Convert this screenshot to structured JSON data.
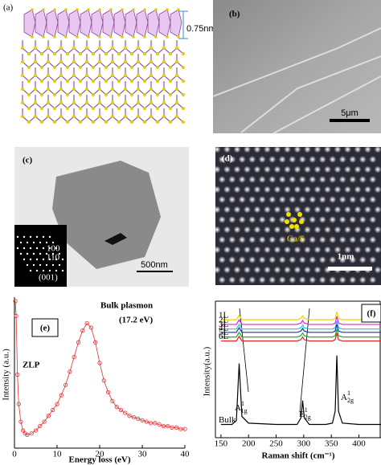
{
  "panels": {
    "a": {
      "label": "(a)",
      "thickness": "0.75nm"
    },
    "b": {
      "label": "(b)",
      "scale": "5μm"
    },
    "c": {
      "label": "(c)",
      "scale": "500nm",
      "inset": [
        "100",
        "110",
        "(001)"
      ]
    },
    "d": {
      "label": "(d)",
      "scale": "1nm",
      "atoms": "Ga/S"
    }
  },
  "chart_data": [
    {
      "type": "scatter",
      "label": "(e)",
      "xlabel": "Energy loss (eV)",
      "ylabel": "Intensity (a.u.)",
      "color": "#e03030",
      "annotations": [
        "ZLP",
        "Bulk plasmon",
        "(17.2 eV)"
      ],
      "x": [
        0.2,
        0.4,
        0.7,
        1,
        1.5,
        2,
        2.5,
        3,
        4,
        5,
        6,
        7,
        8,
        9,
        10,
        11,
        12,
        13,
        14,
        15,
        16,
        17,
        18,
        19,
        20,
        21,
        22,
        23,
        24,
        25,
        26,
        27,
        28,
        29,
        30,
        31,
        32,
        33,
        34,
        35,
        36,
        37,
        38,
        39,
        40
      ],
      "values": [
        1.0,
        0.9,
        0.5,
        0.3,
        0.18,
        0.12,
        0.1,
        0.09,
        0.1,
        0.12,
        0.15,
        0.18,
        0.22,
        0.26,
        0.3,
        0.36,
        0.43,
        0.52,
        0.62,
        0.72,
        0.8,
        0.85,
        0.82,
        0.72,
        0.58,
        0.46,
        0.38,
        0.32,
        0.28,
        0.26,
        0.24,
        0.22,
        0.21,
        0.2,
        0.19,
        0.18,
        0.17,
        0.17,
        0.16,
        0.15,
        0.15,
        0.14,
        0.14,
        0.13,
        0.13
      ],
      "xlim": [
        0,
        40
      ],
      "xticks": [
        0,
        10,
        20,
        30,
        40
      ],
      "ylim": [
        0,
        1
      ]
    },
    {
      "type": "line",
      "label": "(f)",
      "xlabel": "Raman shift (cm⁻¹)",
      "ylabel": "Intensity(a.u.)",
      "annotations": [
        {
          "base": "A",
          "sup": "1",
          "sub": "1g"
        },
        {
          "base": "E",
          "sup": "1",
          "sub": "2g"
        },
        {
          "base": "A",
          "sup": "1",
          "sub": "2g"
        }
      ],
      "x": [
        150,
        170,
        178,
        183,
        188,
        200,
        250,
        288,
        295,
        298,
        301,
        310,
        340,
        352,
        357,
        360,
        363,
        370,
        400,
        440
      ],
      "series": [
        {
          "name": "1L",
          "color": "#e6d600",
          "values": [
            8.9,
            8.9,
            8.9,
            9.25,
            8.9,
            8.9,
            8.9,
            8.9,
            9.0,
            9.2,
            9.0,
            8.9,
            8.9,
            8.9,
            9.0,
            9.5,
            9.0,
            8.9,
            8.9,
            8.9
          ]
        },
        {
          "name": "2L",
          "color": "#e020e0",
          "values": [
            8.55,
            8.55,
            8.55,
            8.9,
            8.55,
            8.55,
            8.55,
            8.55,
            8.65,
            8.85,
            8.65,
            8.55,
            8.55,
            8.55,
            8.65,
            9.15,
            8.65,
            8.55,
            8.55,
            8.55
          ]
        },
        {
          "name": "3L",
          "color": "#20c8e0",
          "values": [
            8.2,
            8.2,
            8.2,
            8.55,
            8.2,
            8.2,
            8.2,
            8.2,
            8.3,
            8.5,
            8.3,
            8.2,
            8.2,
            8.2,
            8.3,
            8.8,
            8.3,
            8.2,
            8.2,
            8.2
          ]
        },
        {
          "name": "4L",
          "color": "#2030c0",
          "values": [
            7.95,
            7.95,
            7.95,
            8.3,
            7.95,
            7.95,
            7.95,
            7.95,
            8.05,
            8.25,
            8.05,
            7.95,
            7.95,
            7.95,
            8.05,
            8.55,
            8.05,
            7.95,
            7.95,
            7.95
          ]
        },
        {
          "name": "5L",
          "color": "#20b020",
          "values": [
            7.6,
            7.6,
            7.6,
            7.95,
            7.6,
            7.6,
            7.6,
            7.6,
            7.7,
            7.9,
            7.7,
            7.6,
            7.6,
            7.6,
            7.7,
            8.2,
            7.7,
            7.6,
            7.6,
            7.6
          ]
        },
        {
          "name": "6L",
          "color": "#e02020",
          "values": [
            7.3,
            7.3,
            7.3,
            7.65,
            7.3,
            7.3,
            7.3,
            7.3,
            7.4,
            7.6,
            7.4,
            7.3,
            7.3,
            7.3,
            7.4,
            7.9,
            7.4,
            7.3,
            7.3,
            7.3
          ]
        },
        {
          "name": "Bulk",
          "color": "#000000",
          "values": [
            1.0,
            1.0,
            1.3,
            5.6,
            1.6,
            1.1,
            1.0,
            1.0,
            1.5,
            2.8,
            1.5,
            1.0,
            1.0,
            1.1,
            2.0,
            6.2,
            2.0,
            1.1,
            1.0,
            1.0
          ]
        }
      ],
      "xlim": [
        140,
        440
      ],
      "xticks": [
        150,
        200,
        250,
        300,
        350,
        400
      ],
      "ylim": [
        0,
        10
      ]
    }
  ]
}
